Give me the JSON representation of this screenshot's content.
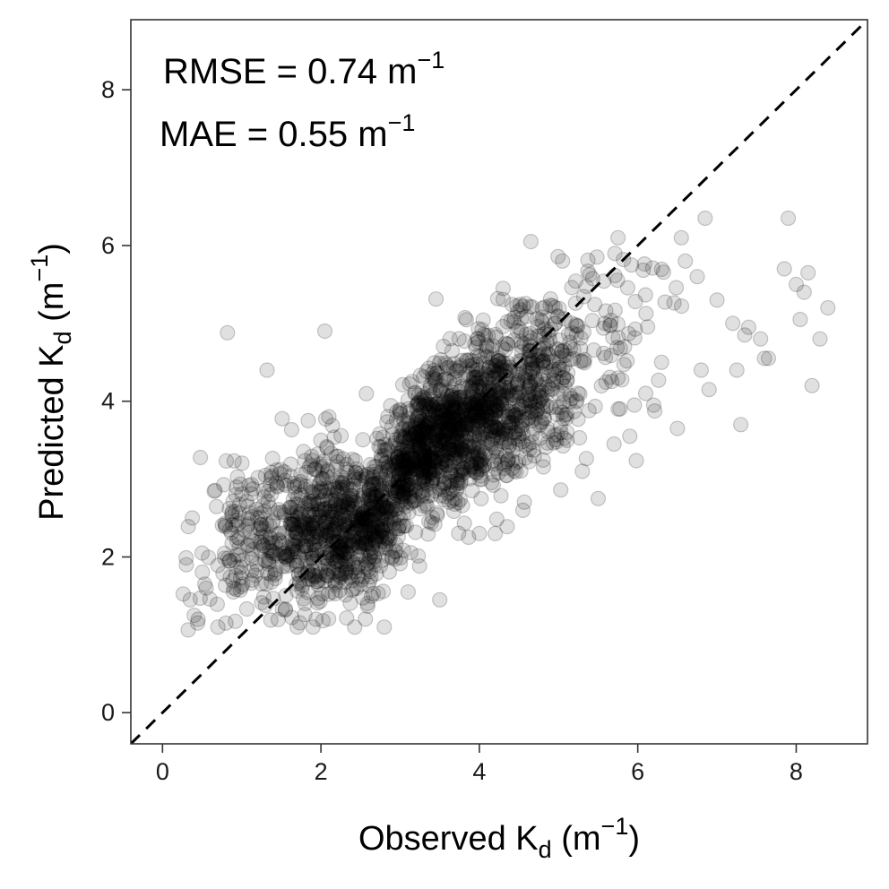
{
  "chart_data": {
    "type": "scatter",
    "xlabel": {
      "main": "Observed K",
      "sub": "d",
      "unit_open": " (m",
      "sup": "−1",
      "unit_close": ")"
    },
    "ylabel": {
      "main": "Predicted K",
      "sub": "d",
      "unit_open": " (m",
      "sup": "−1",
      "unit_close": ")"
    },
    "xlim": [
      -0.4,
      8.9
    ],
    "ylim": [
      -0.4,
      8.9
    ],
    "x_ticks": [
      0,
      2,
      4,
      6,
      8
    ],
    "y_ticks": [
      0,
      2,
      4,
      6,
      8
    ],
    "grid": false,
    "reference_line": {
      "slope": 1,
      "intercept": 0,
      "style": "dashed"
    },
    "annotations": [
      {
        "text": "RMSE = 0.74 m",
        "sup": "−1"
      },
      {
        "text": "MAE = 0.55 m",
        "sup": "−1"
      }
    ],
    "point_color": "#000000",
    "point_opacity": 0.12,
    "n_points": 2500,
    "points": [
      [
        0.3,
        1.9
      ],
      [
        0.35,
        1.45
      ],
      [
        0.4,
        1.25
      ],
      [
        0.45,
        1.2
      ],
      [
        0.5,
        2.05
      ],
      [
        0.55,
        1.6
      ],
      [
        0.7,
        1.1
      ],
      [
        0.8,
        1.15
      ],
      [
        0.82,
        4.88
      ],
      [
        0.85,
        1.95
      ],
      [
        0.9,
        1.6
      ],
      [
        1.0,
        1.8
      ],
      [
        1.2,
        2.5
      ],
      [
        1.3,
        3.05
      ],
      [
        1.32,
        4.4
      ],
      [
        1.45,
        2.9
      ],
      [
        1.6,
        1.9
      ],
      [
        1.7,
        1.1
      ],
      [
        1.9,
        1.1
      ],
      [
        2.0,
        3.5
      ],
      [
        2.05,
        4.9
      ],
      [
        2.1,
        3.8
      ],
      [
        2.8,
        1.1
      ],
      [
        3.1,
        1.55
      ],
      [
        3.5,
        1.45
      ],
      [
        4.0,
        2.3
      ],
      [
        4.2,
        2.3
      ],
      [
        4.55,
        2.6
      ],
      [
        4.65,
        6.05
      ],
      [
        5.05,
        5.8
      ],
      [
        5.3,
        3.1
      ],
      [
        5.5,
        2.75
      ],
      [
        5.7,
        3.45
      ],
      [
        5.75,
        6.1
      ],
      [
        5.9,
        3.55
      ],
      [
        6.1,
        4.1
      ],
      [
        6.2,
        3.95
      ],
      [
        6.3,
        4.5
      ],
      [
        6.5,
        3.65
      ],
      [
        6.55,
        6.1
      ],
      [
        6.6,
        5.8
      ],
      [
        6.75,
        5.6
      ],
      [
        6.8,
        4.4
      ],
      [
        6.85,
        6.35
      ],
      [
        6.9,
        4.15
      ],
      [
        7.0,
        5.3
      ],
      [
        7.2,
        5.0
      ],
      [
        7.25,
        4.4
      ],
      [
        7.3,
        3.7
      ],
      [
        7.35,
        4.85
      ],
      [
        7.4,
        4.95
      ],
      [
        7.55,
        4.8
      ],
      [
        7.6,
        4.55
      ],
      [
        7.65,
        4.55
      ],
      [
        7.85,
        5.7
      ],
      [
        7.9,
        6.35
      ],
      [
        8.0,
        5.5
      ],
      [
        8.05,
        5.05
      ],
      [
        8.1,
        5.4
      ],
      [
        8.15,
        5.65
      ],
      [
        8.2,
        4.2
      ],
      [
        8.3,
        4.8
      ],
      [
        8.4,
        5.2
      ]
    ]
  }
}
